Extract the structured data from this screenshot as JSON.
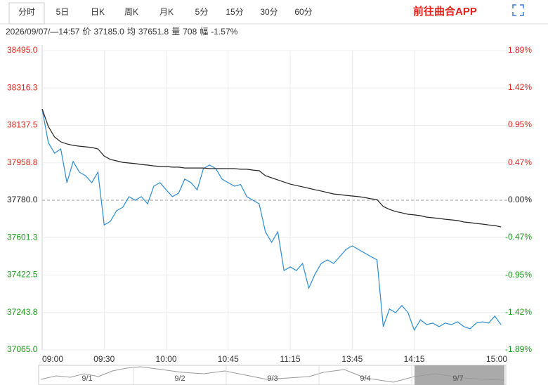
{
  "toolbar": {
    "tabs": [
      "分时",
      "5日",
      "日K",
      "周K",
      "月K",
      "5分",
      "15分",
      "30分",
      "60分"
    ],
    "app_link": "前往曲合APP"
  },
  "info": {
    "time": "2026/09/07/—14:57",
    "price_label": "价",
    "price": "37185.0",
    "avg_label": "均",
    "avg": "37651.8",
    "vol_label": "量",
    "vol": "708",
    "range_label": "幅",
    "range": "-1.57%"
  },
  "chart_data": {
    "type": "line",
    "x": [
      0,
      3,
      6,
      9,
      12,
      15,
      18,
      21,
      24,
      27,
      30,
      33,
      36,
      39,
      42,
      45,
      48,
      51,
      54,
      57,
      60,
      63,
      66,
      69,
      72,
      75,
      78,
      81,
      84,
      87,
      90,
      93,
      96,
      99,
      102,
      105,
      108,
      111,
      114,
      117,
      120,
      123,
      126,
      129,
      132,
      135,
      138,
      141,
      144,
      147,
      150,
      153,
      156,
      159,
      162,
      165,
      168,
      171,
      174,
      177,
      180,
      183,
      186,
      189,
      192,
      195,
      198,
      201,
      204,
      207,
      210,
      213,
      216,
      219,
      222
    ],
    "series": [
      {
        "color": "#2a8bd0",
        "values": [
          38216,
          38055,
          38005,
          38025,
          37864,
          37965,
          37914,
          37897,
          37864,
          37914,
          37662,
          37679,
          37730,
          37746,
          37797,
          37780,
          37797,
          37763,
          37847,
          37864,
          37830,
          37797,
          37814,
          37881,
          37864,
          37830,
          37931,
          37948,
          37931,
          37881,
          37864,
          37847,
          37855,
          37797,
          37780,
          37763,
          37629,
          37579,
          37629,
          37444,
          37461,
          37444,
          37478,
          37360,
          37427,
          37478,
          37495,
          37478,
          37511,
          37545,
          37562,
          37545,
          37528,
          37511,
          37495,
          37176,
          37260,
          37243,
          37277,
          37243,
          37159,
          37209,
          37186,
          37193,
          37176,
          37193,
          37186,
          37199,
          37176,
          37166,
          37193,
          37199,
          37193,
          37226,
          37185
        ]
      },
      {
        "color": "#222222",
        "values": [
          38216,
          38132,
          38082,
          38059,
          38049,
          38042,
          38038,
          38035,
          38032,
          38025,
          37991,
          37975,
          37968,
          37961,
          37958,
          37955,
          37951,
          37948,
          37944,
          37941,
          37941,
          37938,
          37938,
          37934,
          37934,
          37934,
          37934,
          37931,
          37931,
          37931,
          37931,
          37931,
          37928,
          37928,
          37924,
          37921,
          37897,
          37887,
          37877,
          37867,
          37857,
          37850,
          37844,
          37837,
          37830,
          37824,
          37817,
          37810,
          37807,
          37803,
          37800,
          37797,
          37793,
          37787,
          37783,
          37750,
          37736,
          37726,
          37720,
          37713,
          37710,
          37706,
          37699,
          37696,
          37693,
          37689,
          37686,
          37683,
          37676,
          37673,
          37669,
          37666,
          37662,
          37659,
          37652
        ]
      }
    ],
    "xlim": [
      0,
      225
    ],
    "xticks": [
      {
        "value": 0,
        "label": "09:00"
      },
      {
        "value": 30,
        "label": "09:30"
      },
      {
        "value": 60,
        "label": "10:00"
      },
      {
        "value": 90,
        "label": "10:45"
      },
      {
        "value": 120,
        "label": "11:15"
      },
      {
        "value": 150,
        "label": "13:45"
      },
      {
        "value": 180,
        "label": "14:15"
      },
      {
        "value": 225,
        "label": "15:00"
      }
    ],
    "ylim": [
      37065,
      38495
    ],
    "yticks": [
      {
        "value": 38495,
        "label": "38495.0"
      },
      38316.3,
      38137.5,
      37958.8,
      {
        "value": 37780,
        "label": "37780.0"
      },
      37601.3,
      37422.5,
      37243.8,
      {
        "value": 37065,
        "label": "37065.0"
      }
    ],
    "y2lim": [
      -1.89,
      1.89
    ],
    "y2ticks": [
      {
        "value": 1.89,
        "label": "1.89%"
      },
      {
        "value": 1.42,
        "label": "1.42%"
      },
      {
        "value": 0.95,
        "label": "0.95%"
      },
      {
        "value": 0.47,
        "label": "0.47%"
      },
      {
        "value": 0,
        "label": "0.00%"
      },
      {
        "value": -0.47,
        "label": "-0.47%"
      },
      {
        "value": -0.95,
        "label": "-0.95%"
      },
      {
        "value": -1.42,
        "label": "-1.42%"
      },
      {
        "value": -1.89,
        "label": "-1.89%"
      }
    ],
    "base": 37780,
    "up_color": "#e3231b",
    "down_color": "#1a9a1a",
    "grid": true
  },
  "navigator": {
    "dates": [
      "9/1",
      "9/2",
      "9/3",
      "9/4",
      "9/7"
    ]
  }
}
